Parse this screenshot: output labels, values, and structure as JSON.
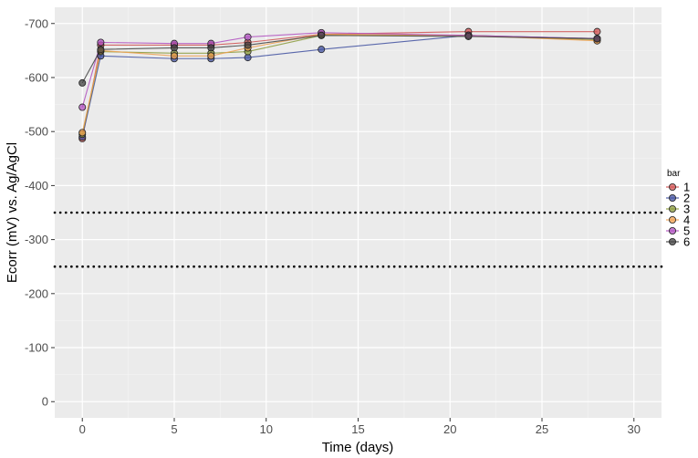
{
  "chart_data": {
    "type": "line",
    "xlabel": "Time (days)",
    "ylabel": "Ecorr (mV) vs. Ag/AgCl",
    "x_ticks": [
      "0",
      "5",
      "10",
      "15",
      "20",
      "25",
      "30"
    ],
    "y_ticks": [
      "0",
      "-100",
      "-200",
      "-300",
      "-400",
      "-500",
      "-600",
      "-700"
    ],
    "xlim": [
      -1.5,
      31.5
    ],
    "ylim": [
      30,
      -730
    ],
    "y_axis_reversed": true,
    "grid": true,
    "legend": {
      "title": "bar",
      "placement": "right",
      "entries": [
        "1",
        "2",
        "3",
        "4",
        "5",
        "6"
      ]
    },
    "reference_lines": [
      {
        "y": -350,
        "style": "dotted"
      },
      {
        "y": -250,
        "style": "dotted"
      }
    ],
    "x": [
      0,
      1,
      5,
      7,
      9,
      13,
      21,
      28
    ],
    "series": [
      {
        "name": "1",
        "color": "#d05050",
        "values": [
          -487,
          -660,
          -660,
          -660,
          -665,
          -680,
          -685,
          -685
        ]
      },
      {
        "name": "2",
        "color": "#4050a0",
        "values": [
          -490,
          -640,
          -635,
          -635,
          -637,
          -652,
          -678,
          -672
        ]
      },
      {
        "name": "3",
        "color": "#8a9a3a",
        "values": [
          -495,
          -648,
          -645,
          -645,
          -648,
          -678,
          -678,
          -670
        ]
      },
      {
        "name": "4",
        "color": "#f0a050",
        "values": [
          -498,
          -650,
          -640,
          -640,
          -655,
          -680,
          -678,
          -668
        ]
      },
      {
        "name": "5",
        "color": "#b050c0",
        "values": [
          -545,
          -665,
          -663,
          -663,
          -675,
          -683,
          -678,
          -672
        ]
      },
      {
        "name": "6",
        "color": "#404040",
        "values": [
          -590,
          -652,
          -655,
          -655,
          -660,
          -678,
          -676,
          -672
        ]
      }
    ]
  }
}
